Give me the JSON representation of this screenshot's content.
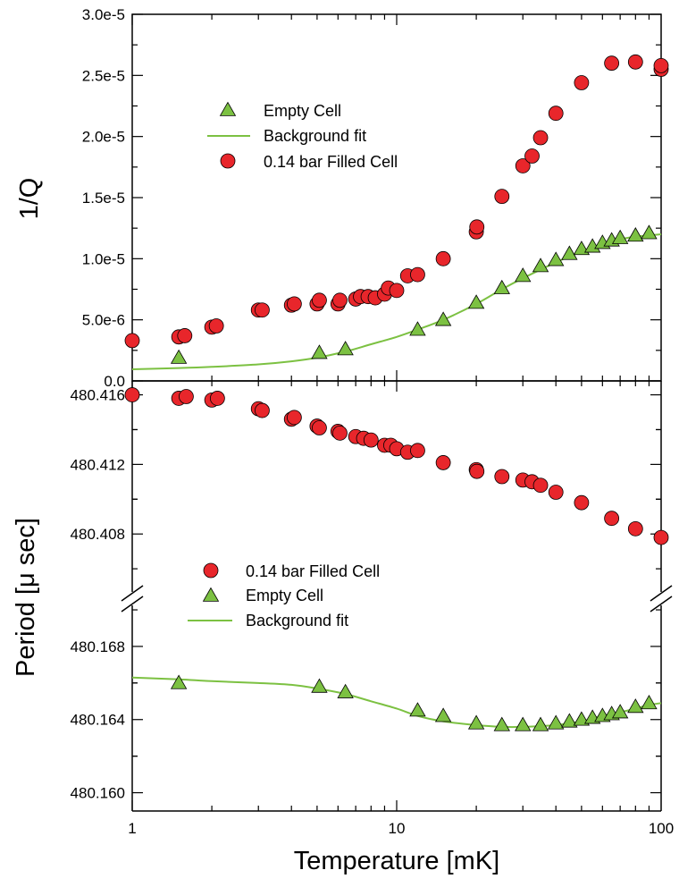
{
  "chart_data": [
    {
      "type": "scatter",
      "ylabel": "1/Q",
      "xscale": "log",
      "xlim": [
        1,
        100
      ],
      "ylim": [
        0,
        3e-05
      ],
      "yticks": [
        "0.0",
        "5.0e-6",
        "1.0e-5",
        "1.5e-5",
        "2.0e-5",
        "2.5e-5",
        "3.0e-5"
      ],
      "ytick_values": [
        0,
        5e-06,
        1e-05,
        1.5e-05,
        2e-05,
        2.5e-05,
        3e-05
      ],
      "legend": [
        "Empty Cell",
        "Background fit",
        "0.14 bar Filled Cell"
      ],
      "legend_position": "upper-left",
      "colors": {
        "filled": "#e8262b",
        "empty": "#7cc142",
        "fit": "#7cc142"
      },
      "series": [
        {
          "name": "Empty Cell",
          "marker": "triangle",
          "x": [
            1.5,
            5.1,
            6.4,
            12.0,
            15.0,
            20.0,
            25.0,
            30.0,
            35.0,
            40.0,
            45.0,
            50.0,
            55.0,
            60.0,
            65.0,
            70.0,
            80.0,
            90.0
          ],
          "y": [
            1.9e-06,
            2.3e-06,
            2.6e-06,
            4.2e-06,
            5e-06,
            6.4e-06,
            7.6e-06,
            8.6e-06,
            9.4e-06,
            9.9e-06,
            1.04e-05,
            1.08e-05,
            1.1e-05,
            1.13e-05,
            1.15e-05,
            1.17e-05,
            1.19e-05,
            1.21e-05
          ]
        },
        {
          "name": "Background fit",
          "marker": "line",
          "x": [
            1,
            1.5,
            2,
            3,
            4,
            5,
            6.4,
            8,
            10,
            12,
            15,
            20,
            25,
            30,
            40,
            50,
            60,
            70,
            80,
            90,
            100
          ],
          "y": [
            9.5e-07,
            1.05e-06,
            1.15e-06,
            1.35e-06,
            1.6e-06,
            1.9e-06,
            2.4e-06,
            3e-06,
            3.6e-06,
            4.2e-06,
            5e-06,
            6.3e-06,
            7.5e-06,
            8.4e-06,
            9.7e-06,
            1.06e-05,
            1.12e-05,
            1.16e-05,
            1.18e-05,
            1.19e-05,
            1.2e-05
          ]
        },
        {
          "name": "0.14 bar Filled Cell",
          "marker": "circle",
          "x": [
            1.0,
            1.5,
            1.58,
            2.0,
            2.08,
            3.0,
            3.1,
            4.0,
            4.1,
            5.0,
            5.1,
            6.0,
            6.1,
            7.0,
            7.3,
            7.8,
            8.3,
            9.0,
            9.3,
            10.0,
            11.0,
            12.0,
            15.0,
            20.0,
            20.1,
            25.0,
            30.0,
            32.5,
            35.0,
            40.0,
            50.0,
            65.0,
            80.0,
            100.0,
            100.0
          ],
          "y": [
            3.3e-06,
            3.6e-06,
            3.7e-06,
            4.4e-06,
            4.5e-06,
            5.8e-06,
            5.8e-06,
            6.2e-06,
            6.3e-06,
            6.3e-06,
            6.6e-06,
            6.3e-06,
            6.6e-06,
            6.7e-06,
            6.9e-06,
            6.9e-06,
            6.8e-06,
            7.1e-06,
            7.6e-06,
            7.4e-06,
            8.6e-06,
            8.7e-06,
            1e-05,
            1.22e-05,
            1.26e-05,
            1.51e-05,
            1.76e-05,
            1.84e-05,
            1.99e-05,
            2.19e-05,
            2.44e-05,
            2.6e-05,
            2.61e-05,
            2.55e-05,
            2.58e-05
          ]
        }
      ]
    },
    {
      "type": "scatter",
      "ylabel": "Period [μ sec]",
      "xlabel": "Temperature [mK]",
      "xscale": "log",
      "xlim": [
        1,
        100
      ],
      "xticks": [
        "1",
        "10",
        "100"
      ],
      "xtick_values": [
        1,
        10,
        100
      ],
      "broken_y_axis": true,
      "upper_ylim": [
        480.4058,
        480.4168
      ],
      "upper_yticks": [
        "480.408",
        "480.412",
        "480.416"
      ],
      "upper_ytick_values": [
        480.408,
        480.412,
        480.416
      ],
      "lower_ylim": [
        480.159,
        480.1701
      ],
      "lower_yticks": [
        "480.160",
        "480.164",
        "480.168"
      ],
      "lower_ytick_values": [
        480.16,
        480.164,
        480.168
      ],
      "legend": [
        "0.14 bar Filled Cell",
        "Empty Cell",
        "Background fit"
      ],
      "legend_position": "center-left",
      "colors": {
        "filled": "#e8262b",
        "empty": "#7cc142",
        "fit": "#7cc142"
      },
      "series": [
        {
          "name": "0.14 bar Filled Cell",
          "marker": "circle",
          "axis": "upper",
          "x": [
            1.0,
            1.5,
            1.6,
            2.0,
            2.1,
            3.0,
            3.1,
            4.0,
            4.1,
            5.0,
            5.1,
            6.0,
            6.1,
            7.0,
            7.5,
            8.0,
            9.0,
            9.5,
            10.0,
            11.0,
            12.0,
            15.0,
            20.0,
            20.1,
            25.0,
            30.0,
            32.5,
            35.0,
            40.0,
            50.0,
            65.0,
            80.0,
            100.0
          ],
          "y": [
            480.416,
            480.4158,
            480.4159,
            480.4157,
            480.4158,
            480.4152,
            480.4151,
            480.4146,
            480.4147,
            480.4142,
            480.4141,
            480.4139,
            480.4138,
            480.4136,
            480.4135,
            480.4134,
            480.4131,
            480.4131,
            480.4129,
            480.4127,
            480.4128,
            480.4121,
            480.4117,
            480.4116,
            480.4113,
            480.4111,
            480.411,
            480.4108,
            480.4104,
            480.4098,
            480.4089,
            480.4083,
            480.4078
          ]
        },
        {
          "name": "Empty Cell",
          "marker": "triangle",
          "axis": "lower",
          "x": [
            1.5,
            5.1,
            6.4,
            12.0,
            15.0,
            20.0,
            25.0,
            30.0,
            35.0,
            40.0,
            45.0,
            50.0,
            55.0,
            60.0,
            65.0,
            70.0,
            80.0,
            90.0
          ],
          "y": [
            480.166,
            480.1658,
            480.1655,
            480.1645,
            480.1642,
            480.1638,
            480.1637,
            480.1637,
            480.1637,
            480.1638,
            480.1639,
            480.164,
            480.1641,
            480.1642,
            480.1643,
            480.1644,
            480.1647,
            480.1649
          ]
        },
        {
          "name": "Background fit",
          "marker": "line",
          "axis": "lower",
          "x": [
            1,
            1.5,
            2,
            3,
            4,
            5,
            6.4,
            8,
            10,
            12,
            15,
            20,
            25,
            30,
            40,
            50,
            60,
            70,
            80,
            90,
            100
          ],
          "y": [
            480.1663,
            480.1662,
            480.1661,
            480.166,
            480.1659,
            480.1657,
            480.1654,
            480.165,
            480.1646,
            480.1642,
            480.1639,
            480.1637,
            480.1636,
            480.1636,
            480.1637,
            480.1639,
            480.1642,
            480.1644,
            480.1646,
            480.1648,
            480.1649
          ]
        }
      ]
    }
  ]
}
